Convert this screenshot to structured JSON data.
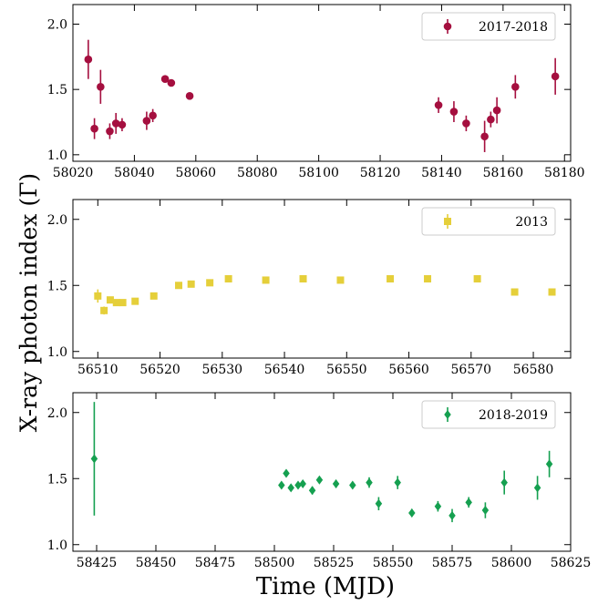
{
  "figure": {
    "ylabel": "X-ray photon index (Γ)",
    "xlabel": "Time (MJD)"
  },
  "chart_data": [
    {
      "type": "scatter",
      "series": [
        {
          "name": "2017-2018",
          "color": "#a50f3f",
          "marker": "circle"
        }
      ],
      "xlim": [
        58020,
        58182
      ],
      "ylim": [
        0.95,
        2.15
      ],
      "xticks": [
        58020,
        58040,
        58060,
        58080,
        58100,
        58120,
        58140,
        58160,
        58180
      ],
      "yticks": [
        1.0,
        1.5,
        2.0
      ],
      "ytick_labels": [
        "1.0",
        "1.5",
        "2.0"
      ],
      "legend_position": "top-right",
      "points": [
        {
          "x": 58025,
          "y": 1.73,
          "err": 0.15
        },
        {
          "x": 58027,
          "y": 1.2,
          "err": 0.08
        },
        {
          "x": 58029,
          "y": 1.52,
          "err": 0.13
        },
        {
          "x": 58032,
          "y": 1.18,
          "err": 0.06
        },
        {
          "x": 58034,
          "y": 1.24,
          "err": 0.08
        },
        {
          "x": 58036,
          "y": 1.23,
          "err": 0.05
        },
        {
          "x": 58044,
          "y": 1.26,
          "err": 0.07
        },
        {
          "x": 58046,
          "y": 1.3,
          "err": 0.05
        },
        {
          "x": 58050,
          "y": 1.58,
          "err": 0.02
        },
        {
          "x": 58052,
          "y": 1.55,
          "err": 0.02
        },
        {
          "x": 58058,
          "y": 1.45,
          "err": 0.02
        },
        {
          "x": 58139,
          "y": 1.38,
          "err": 0.06
        },
        {
          "x": 58144,
          "y": 1.33,
          "err": 0.08
        },
        {
          "x": 58148,
          "y": 1.24,
          "err": 0.06
        },
        {
          "x": 58154,
          "y": 1.14,
          "err": 0.12
        },
        {
          "x": 58156,
          "y": 1.27,
          "err": 0.06
        },
        {
          "x": 58158,
          "y": 1.34,
          "err": 0.1
        },
        {
          "x": 58164,
          "y": 1.52,
          "err": 0.09
        },
        {
          "x": 58177,
          "y": 1.6,
          "err": 0.14
        }
      ]
    },
    {
      "type": "scatter",
      "series": [
        {
          "name": "2013",
          "color": "#e5cf3a",
          "marker": "square"
        }
      ],
      "xlim": [
        56506,
        56586
      ],
      "ylim": [
        0.95,
        2.15
      ],
      "xticks": [
        56510,
        56520,
        56530,
        56540,
        56550,
        56560,
        56570,
        56580
      ],
      "yticks": [
        1.0,
        1.5,
        2.0
      ],
      "ytick_labels": [
        "1.0",
        "1.5",
        "2.0"
      ],
      "legend_position": "top-right",
      "points": [
        {
          "x": 56510,
          "y": 1.42,
          "err": 0.05
        },
        {
          "x": 56511,
          "y": 1.31,
          "err": 0.03
        },
        {
          "x": 56512,
          "y": 1.39,
          "err": 0.02
        },
        {
          "x": 56513,
          "y": 1.37,
          "err": 0.02
        },
        {
          "x": 56514,
          "y": 1.37,
          "err": 0.02
        },
        {
          "x": 56516,
          "y": 1.38,
          "err": 0.02
        },
        {
          "x": 56519,
          "y": 1.42,
          "err": 0.02
        },
        {
          "x": 56523,
          "y": 1.5,
          "err": 0.02
        },
        {
          "x": 56525,
          "y": 1.51,
          "err": 0.02
        },
        {
          "x": 56528,
          "y": 1.52,
          "err": 0.02
        },
        {
          "x": 56531,
          "y": 1.55,
          "err": 0.02
        },
        {
          "x": 56537,
          "y": 1.54,
          "err": 0.02
        },
        {
          "x": 56543,
          "y": 1.55,
          "err": 0.02
        },
        {
          "x": 56549,
          "y": 1.54,
          "err": 0.02
        },
        {
          "x": 56557,
          "y": 1.55,
          "err": 0.02
        },
        {
          "x": 56563,
          "y": 1.55,
          "err": 0.02
        },
        {
          "x": 56571,
          "y": 1.55,
          "err": 0.02
        },
        {
          "x": 56577,
          "y": 1.45,
          "err": 0.02
        },
        {
          "x": 56583,
          "y": 1.45,
          "err": 0.02
        }
      ]
    },
    {
      "type": "scatter",
      "series": [
        {
          "name": "2018-2019",
          "color": "#15a050",
          "marker": "diamond"
        }
      ],
      "xlim": [
        58415,
        58625
      ],
      "ylim": [
        0.95,
        2.15
      ],
      "xticks": [
        58425,
        58450,
        58475,
        58500,
        58525,
        58550,
        58575,
        58600,
        58625
      ],
      "yticks": [
        1.0,
        1.5,
        2.0
      ],
      "ytick_labels": [
        "1.0",
        "1.5",
        "2.0"
      ],
      "legend_position": "top-right",
      "points": [
        {
          "x": 58424,
          "y": 1.65,
          "err": 0.43
        },
        {
          "x": 58503,
          "y": 1.45,
          "err": 0.02
        },
        {
          "x": 58505,
          "y": 1.54,
          "err": 0.02
        },
        {
          "x": 58507,
          "y": 1.43,
          "err": 0.02
        },
        {
          "x": 58510,
          "y": 1.45,
          "err": 0.02
        },
        {
          "x": 58512,
          "y": 1.46,
          "err": 0.02
        },
        {
          "x": 58516,
          "y": 1.41,
          "err": 0.03
        },
        {
          "x": 58519,
          "y": 1.49,
          "err": 0.02
        },
        {
          "x": 58526,
          "y": 1.46,
          "err": 0.03
        },
        {
          "x": 58533,
          "y": 1.45,
          "err": 0.02
        },
        {
          "x": 58540,
          "y": 1.47,
          "err": 0.04
        },
        {
          "x": 58544,
          "y": 1.31,
          "err": 0.05
        },
        {
          "x": 58552,
          "y": 1.47,
          "err": 0.05
        },
        {
          "x": 58558,
          "y": 1.24,
          "err": 0.03
        },
        {
          "x": 58569,
          "y": 1.29,
          "err": 0.04
        },
        {
          "x": 58575,
          "y": 1.22,
          "err": 0.05
        },
        {
          "x": 58582,
          "y": 1.32,
          "err": 0.04
        },
        {
          "x": 58589,
          "y": 1.26,
          "err": 0.06
        },
        {
          "x": 58597,
          "y": 1.47,
          "err": 0.09
        },
        {
          "x": 58611,
          "y": 1.43,
          "err": 0.09
        },
        {
          "x": 58616,
          "y": 1.61,
          "err": 0.1
        }
      ]
    }
  ]
}
